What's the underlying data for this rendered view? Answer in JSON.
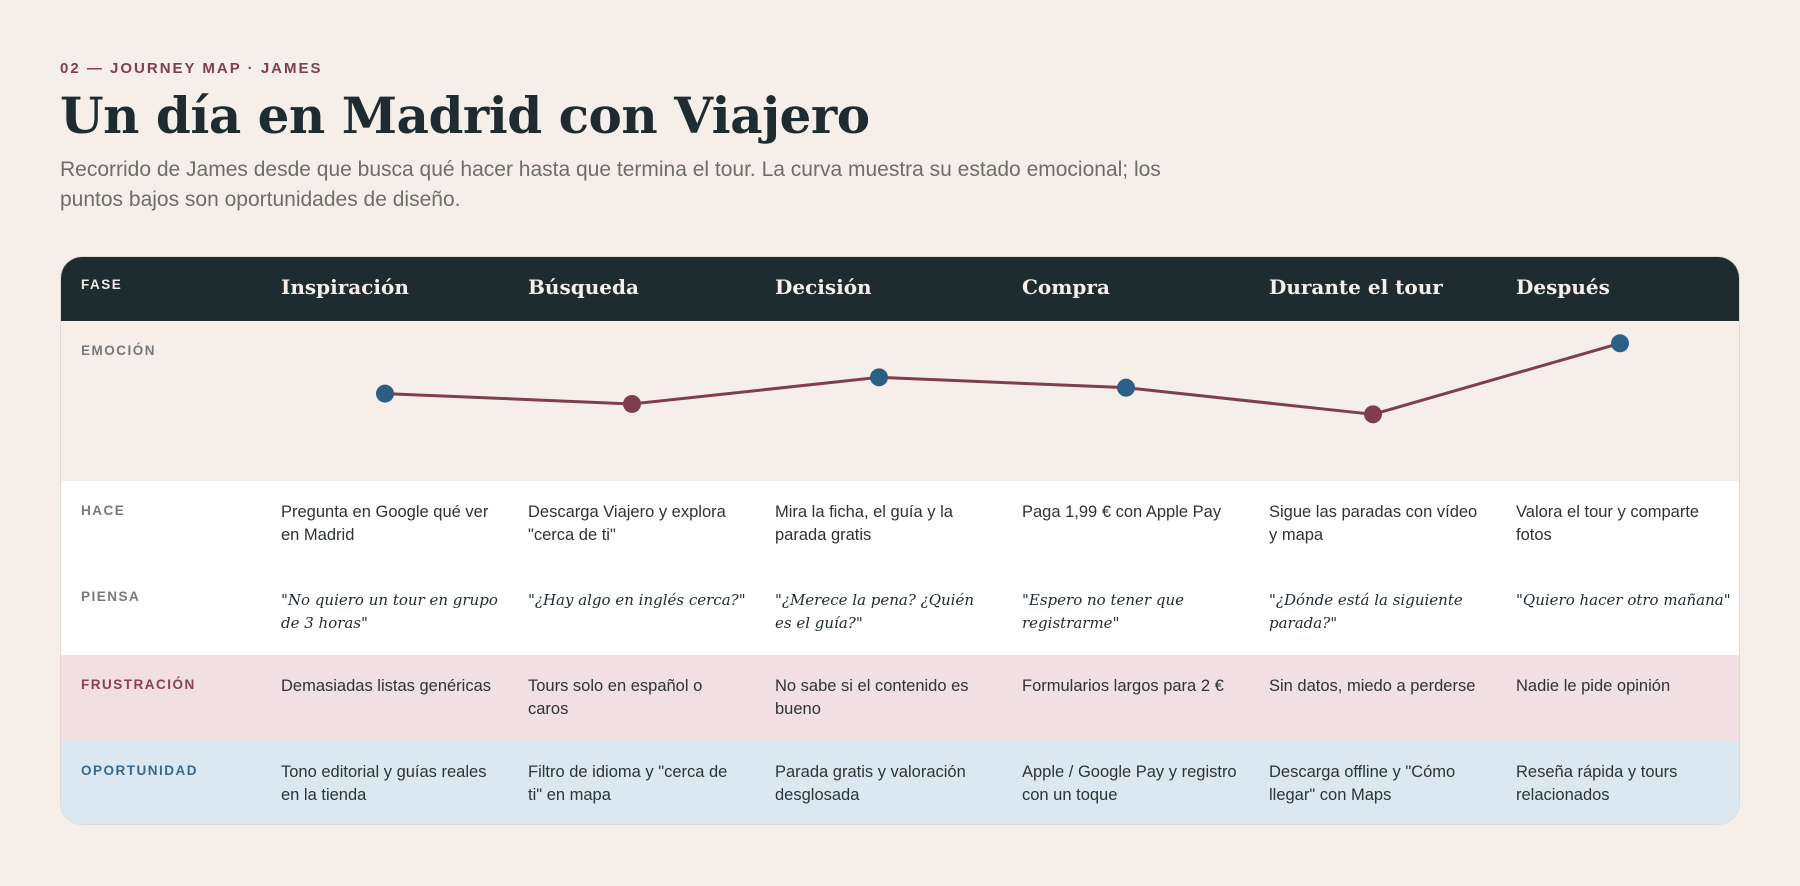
{
  "header": {
    "eyebrow": "02 — JOURNEY MAP · JAMES",
    "title": "Un día en Madrid con Viajero",
    "subtitle": "Recorrido de James desde que busca qué hacer hasta que termina el tour. La curva muestra su estado emocional; los puntos bajos son oportunidades de diseño."
  },
  "labels": {
    "fase": "FASE",
    "emocion": "EMOCIÓN",
    "hace": "HACE",
    "piensa": "PIENSA",
    "frustracion": "FRUSTRACIÓN",
    "oportunidad": "OPORTUNIDAD"
  },
  "phases": [
    "Inspiración",
    "Búsqueda",
    "Decisión",
    "Compra",
    "Durante el tour",
    "Después"
  ],
  "hace": [
    "Pregunta en Google qué ver en Madrid",
    "Descarga Viajero y explora \"cerca de ti\"",
    "Mira la ficha, el guía y la parada gratis",
    "Paga 1,99 € con Apple Pay",
    "Sigue las paradas con vídeo y mapa",
    "Valora el tour y comparte fotos"
  ],
  "piensa": [
    "\"No quiero un tour en grupo de 3 horas\"",
    "\"¿Hay algo en inglés cerca?\"",
    "\"¿Merece la pena? ¿Quién es el guía?\"",
    "\"Espero no tener que registrarme\"",
    "\"¿Dónde está la siguiente parada?\"",
    "\"Quiero hacer otro mañana\""
  ],
  "frustracion": [
    "Demasiadas listas genéricas",
    "Tours solo en español o caros",
    "No sabe si el contenido es bueno",
    "Formularios largos para 2 €",
    "Sin datos, miedo a perderse",
    "Nadie le pide opinión"
  ],
  "oportunidad": [
    "Tono editorial y guías reales en la tienda",
    "Filtro de idioma y \"cerca de ti\" en mapa",
    "Parada gratis y valoración desglosada",
    "Apple / Google Pay y registro con un toque",
    "Descarga offline y \"Cómo llegar\" con Maps",
    "Reseña rápida y tours relacionados"
  ],
  "chart_data": {
    "type": "line",
    "categories": [
      "Inspiración",
      "Búsqueda",
      "Decisión",
      "Compra",
      "Durante el tour",
      "Después"
    ],
    "values": [
      0.55,
      0.48,
      0.66,
      0.59,
      0.41,
      0.89
    ],
    "ylim": [
      0,
      1
    ],
    "point_colors": [
      "#2c5f86",
      "#7f3e4c",
      "#2c5f86",
      "#2c5f86",
      "#7f3e4c",
      "#2c5f86"
    ],
    "line_color": "#7f3e4c"
  },
  "colors": {
    "accent": "#7f3e4c",
    "positive": "#2c5f86",
    "header_bg": "#1e2b2f",
    "frustration_bg": "#f1dfe3",
    "opportunity_bg": "#dce8f1"
  }
}
